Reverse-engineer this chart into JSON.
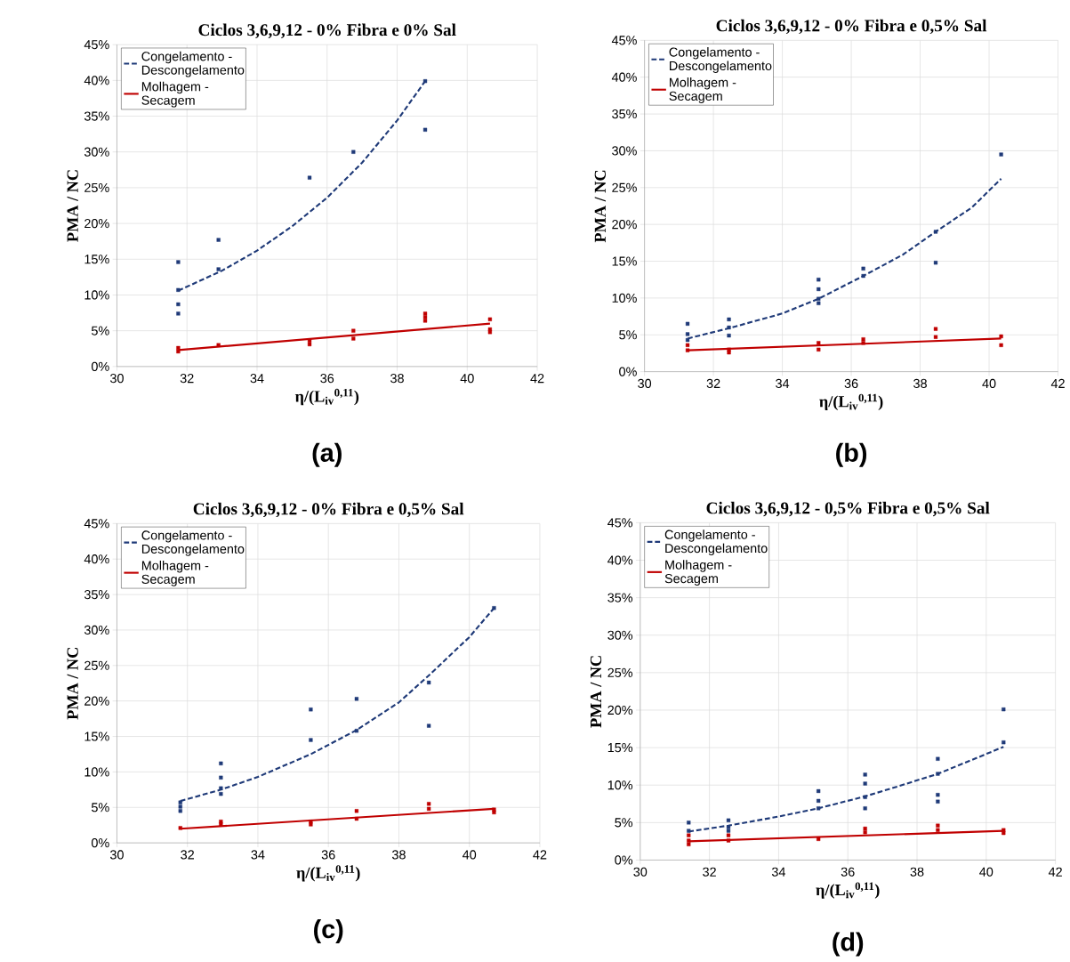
{
  "chart_data": [
    {
      "type": "scatter",
      "title": "Ciclos 3,6,9,12 - 0% Fibra e 0% Sal",
      "xlabel": "η/(L$_{iv}$$^{0,11}$)",
      "ylabel": "PMA / NC",
      "xlim": [
        30,
        42
      ],
      "xticks": [
        30,
        32,
        34,
        36,
        38,
        40,
        42
      ],
      "ylim": [
        0,
        45
      ],
      "yticks": [
        {
          "value": 0,
          "label": "0%"
        },
        {
          "value": 5,
          "label": "5%"
        },
        {
          "value": 10,
          "label": "10%"
        },
        {
          "value": 15,
          "label": "15%"
        },
        {
          "value": 20,
          "label": "20%"
        },
        {
          "value": 25,
          "label": "25%"
        },
        {
          "value": 30,
          "label": "30%"
        },
        {
          "value": 35,
          "label": "35%"
        },
        {
          "value": 40,
          "label": "40%"
        },
        {
          "value": 45,
          "label": "45%"
        }
      ],
      "grid": true,
      "legend": "top left",
      "annotations": [
        "(a)"
      ],
      "series": [
        {
          "type": "scatter",
          "marker": "square",
          "color": "#1f3a78",
          "x": [
            31.75,
            31.75,
            31.75,
            31.75,
            32.9,
            32.9,
            35.5,
            36.75,
            38.8,
            38.8
          ],
          "values": [
            14.6,
            10.7,
            8.7,
            7.4,
            17.7,
            13.6,
            26.4,
            30.0,
            33.1,
            39.9
          ]
        },
        {
          "type": "line",
          "name": "Congelamento - Descongelamento",
          "line_style": "dashed",
          "color": "#1f3a78",
          "x": [
            31.75,
            33,
            34,
            35,
            36,
            37,
            38,
            38.8
          ],
          "values": [
            10.6,
            13.4,
            16.2,
            19.6,
            23.6,
            28.5,
            34.4,
            39.9
          ]
        },
        {
          "type": "scatter",
          "marker": "square",
          "color": "#c00000",
          "x": [
            31.75,
            31.75,
            32.9,
            35.5,
            35.5,
            36.75,
            36.75,
            38.8,
            38.8,
            38.8,
            40.65,
            40.65,
            40.65
          ],
          "values": [
            2.6,
            2.1,
            3.0,
            3.6,
            3.1,
            5.0,
            3.9,
            7.4,
            6.9,
            6.4,
            6.6,
            5.2,
            4.8
          ]
        },
        {
          "type": "line",
          "name": "Molhagem - Secagem",
          "line_style": "solid",
          "color": "#c00000",
          "x": [
            31.75,
            40.65
          ],
          "values": [
            2.3,
            6.0
          ]
        }
      ]
    },
    {
      "type": "scatter",
      "title": "Ciclos 3,6,9,12 - 0% Fibra e 0,5% Sal",
      "xlabel": "η/(L$_{iv}$$^{0,11}$)",
      "ylabel": "PMA / NC",
      "xlim": [
        30,
        42
      ],
      "xticks": [
        30,
        32,
        34,
        36,
        38,
        40,
        42
      ],
      "ylim": [
        0,
        45
      ],
      "yticks": [
        {
          "value": 0,
          "label": "0%"
        },
        {
          "value": 5,
          "label": "5%"
        },
        {
          "value": 10,
          "label": "10%"
        },
        {
          "value": 15,
          "label": "15%"
        },
        {
          "value": 20,
          "label": "20%"
        },
        {
          "value": 25,
          "label": "25%"
        },
        {
          "value": 30,
          "label": "30%"
        },
        {
          "value": 35,
          "label": "35%"
        },
        {
          "value": 40,
          "label": "40%"
        },
        {
          "value": 45,
          "label": "45%"
        }
      ],
      "grid": true,
      "legend": "top left",
      "annotations": [
        "(b)"
      ],
      "series": [
        {
          "type": "scatter",
          "marker": "square",
          "color": "#1f3a78",
          "x": [
            31.25,
            31.25,
            31.25,
            32.45,
            32.45,
            32.45,
            35.05,
            35.05,
            35.05,
            35.05,
            36.35,
            36.35,
            38.45,
            38.45,
            40.35
          ],
          "values": [
            6.5,
            5.1,
            4.3,
            7.1,
            6.0,
            4.9,
            12.5,
            11.2,
            9.9,
            9.3,
            14.0,
            13.0,
            19.0,
            14.8,
            29.5
          ]
        },
        {
          "type": "line",
          "name": "Congelamento - Descongelamento",
          "line_style": "dashed",
          "color": "#1f3a78",
          "x": [
            31.25,
            32.45,
            34,
            35.05,
            36.35,
            37.5,
            38.45,
            39.5,
            40.35
          ],
          "values": [
            4.5,
            5.9,
            7.9,
            9.9,
            13.0,
            15.9,
            19.0,
            22.3,
            26.2
          ]
        },
        {
          "type": "scatter",
          "marker": "square",
          "color": "#c00000",
          "x": [
            31.25,
            31.25,
            32.45,
            32.45,
            35.05,
            35.05,
            36.35,
            36.35,
            38.45,
            38.45,
            40.35,
            40.35
          ],
          "values": [
            3.6,
            2.9,
            3.0,
            2.6,
            3.9,
            3.0,
            4.4,
            3.9,
            5.8,
            4.7,
            4.8,
            3.6
          ]
        },
        {
          "type": "line",
          "name": "Molhagem - Secagem",
          "line_style": "solid",
          "color": "#c00000",
          "x": [
            31.25,
            40.35
          ],
          "values": [
            2.9,
            4.5
          ]
        }
      ]
    },
    {
      "type": "scatter",
      "title": "Ciclos 3,6,9,12 - 0% Fibra e 0,5% Sal",
      "xlabel": "η/(L$_{iv}$$^{0,11}$)",
      "ylabel": "PMA / NC",
      "xlim": [
        30,
        42
      ],
      "xticks": [
        30,
        32,
        34,
        36,
        38,
        40,
        42
      ],
      "ylim": [
        0,
        45
      ],
      "yticks": [
        {
          "value": 0,
          "label": "0%"
        },
        {
          "value": 5,
          "label": "5%"
        },
        {
          "value": 10,
          "label": "10%"
        },
        {
          "value": 15,
          "label": "15%"
        },
        {
          "value": 20,
          "label": "20%"
        },
        {
          "value": 25,
          "label": "25%"
        },
        {
          "value": 30,
          "label": "30%"
        },
        {
          "value": 35,
          "label": "35%"
        },
        {
          "value": 40,
          "label": "40%"
        },
        {
          "value": 45,
          "label": "45%"
        }
      ],
      "grid": true,
      "legend": "top left",
      "annotations": [
        "(c)"
      ],
      "series": [
        {
          "type": "scatter",
          "marker": "square",
          "color": "#1f3a78",
          "x": [
            31.8,
            31.8,
            31.8,
            32.95,
            32.95,
            32.95,
            32.95,
            35.5,
            35.5,
            36.8,
            36.8,
            38.85,
            38.85,
            40.7
          ],
          "values": [
            5.7,
            5.1,
            4.5,
            11.2,
            9.2,
            7.7,
            6.9,
            18.8,
            14.5,
            20.3,
            15.8,
            22.6,
            16.5,
            33.1
          ]
        },
        {
          "type": "line",
          "name": "Congelamento - Descongelamento",
          "line_style": "dashed",
          "color": "#1f3a78",
          "x": [
            31.8,
            32.95,
            34,
            35.5,
            36.8,
            38,
            38.85,
            40,
            40.7
          ],
          "values": [
            5.9,
            7.5,
            9.3,
            12.5,
            15.9,
            19.8,
            23.6,
            29.0,
            33.1
          ]
        },
        {
          "type": "scatter",
          "marker": "square",
          "color": "#c00000",
          "x": [
            31.8,
            32.95,
            32.95,
            35.5,
            35.5,
            36.8,
            36.8,
            38.85,
            38.85,
            40.7,
            40.7
          ],
          "values": [
            2.1,
            3.0,
            2.6,
            3.0,
            2.6,
            4.5,
            3.4,
            5.5,
            4.8,
            4.7,
            4.3
          ]
        },
        {
          "type": "line",
          "name": "Molhagem - Secagem",
          "line_style": "solid",
          "color": "#c00000",
          "x": [
            31.8,
            40.7
          ],
          "values": [
            2.0,
            4.8
          ]
        }
      ]
    },
    {
      "type": "scatter",
      "title": "Ciclos 3,6,9,12 - 0,5% Fibra e 0,5% Sal",
      "xlabel": "η/(L$_{iv}$$^{0,11}$)",
      "ylabel": "PMA / NC",
      "xlim": [
        30,
        42
      ],
      "xticks": [
        30,
        32,
        34,
        36,
        38,
        40,
        42
      ],
      "ylim": [
        0,
        45
      ],
      "yticks": [
        {
          "value": 0,
          "label": "0%"
        },
        {
          "value": 5,
          "label": "5%"
        },
        {
          "value": 10,
          "label": "10%"
        },
        {
          "value": 15,
          "label": "15%"
        },
        {
          "value": 20,
          "label": "20%"
        },
        {
          "value": 25,
          "label": "25%"
        },
        {
          "value": 30,
          "label": "30%"
        },
        {
          "value": 35,
          "label": "35%"
        },
        {
          "value": 40,
          "label": "40%"
        },
        {
          "value": 45,
          "label": "45%"
        }
      ],
      "grid": true,
      "legend": "top left",
      "annotations": [
        "(d)"
      ],
      "series": [
        {
          "type": "scatter",
          "marker": "square",
          "color": "#1f3a78",
          "x": [
            31.4,
            31.4,
            32.55,
            32.55,
            32.55,
            35.15,
            35.15,
            35.15,
            36.5,
            36.5,
            36.5,
            36.5,
            38.6,
            38.6,
            38.6,
            38.6,
            40.5,
            40.5
          ],
          "values": [
            5.0,
            3.9,
            5.3,
            4.4,
            3.9,
            9.2,
            7.9,
            6.9,
            11.4,
            10.2,
            8.4,
            6.9,
            13.5,
            11.5,
            8.7,
            7.8,
            20.1,
            15.7
          ]
        },
        {
          "type": "line",
          "name": "Congelamento - Descongelamento",
          "line_style": "dashed",
          "color": "#1f3a78",
          "x": [
            31.4,
            32.55,
            34,
            35.15,
            36.5,
            37.5,
            38.6,
            39.5,
            40.5
          ],
          "values": [
            3.8,
            4.6,
            5.8,
            6.9,
            8.5,
            9.9,
            11.5,
            13.2,
            15.1
          ]
        },
        {
          "type": "scatter",
          "marker": "square",
          "color": "#c00000",
          "x": [
            31.4,
            31.4,
            31.4,
            32.55,
            32.55,
            35.15,
            36.5,
            36.5,
            38.6,
            38.6,
            40.5,
            40.5
          ],
          "values": [
            3.3,
            2.6,
            2.1,
            3.3,
            2.6,
            2.8,
            4.2,
            3.7,
            4.6,
            4.0,
            4.0,
            3.6
          ]
        },
        {
          "type": "line",
          "name": "Molhagem - Secagem",
          "line_style": "solid",
          "color": "#c00000",
          "x": [
            31.4,
            40.5
          ],
          "values": [
            2.5,
            3.9
          ]
        }
      ]
    }
  ]
}
